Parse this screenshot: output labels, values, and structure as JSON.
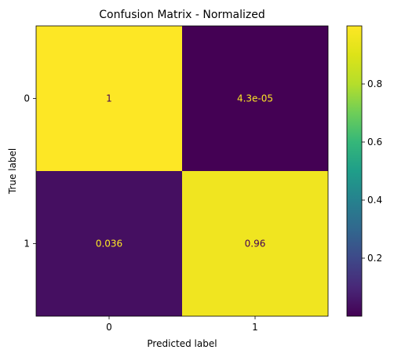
{
  "chart_data": {
    "type": "heatmap",
    "title": "Confusion Matrix - Normalized",
    "xlabel": "Predicted label",
    "ylabel": "True label",
    "x_categories": [
      "0",
      "1"
    ],
    "y_categories": [
      "0",
      "1"
    ],
    "values": [
      [
        1.0,
        4.3e-05
      ],
      [
        0.036,
        0.96
      ]
    ],
    "cell_labels": [
      [
        "1",
        "4.3e-05"
      ],
      [
        "0.036",
        "0.96"
      ]
    ],
    "colormap": "viridis",
    "colorbar": {
      "range": [
        4.3e-05,
        1.0
      ],
      "ticks": [
        0.2,
        0.4,
        0.6,
        0.8
      ],
      "tick_labels": [
        "0.2",
        "0.4",
        "0.6",
        "0.8"
      ]
    },
    "grid": false
  },
  "colors": {
    "high": "#fde725",
    "low": "#440154",
    "label_on_dark": "#fde725",
    "label_on_light": "#440154"
  }
}
